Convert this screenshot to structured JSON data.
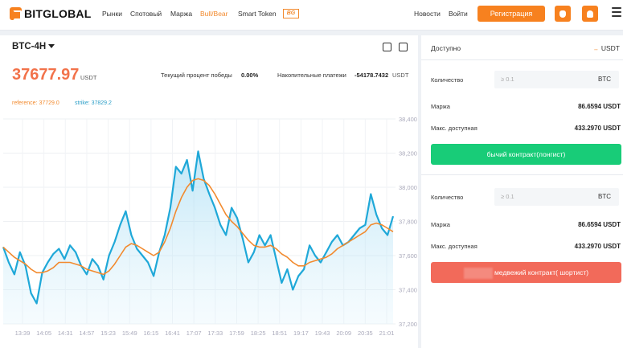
{
  "header": {
    "logo_text": "BITGLOBAL",
    "nav": [
      "Рынки",
      "Спотовый",
      "Маржа",
      "Bull/Bear",
      "Smart Token"
    ],
    "nav_active": "Bull/Bear",
    "badge": "BG",
    "news": "Новости",
    "login": "Войти",
    "register": "Регистрация",
    "apple_icon": "apple-icon",
    "android_icon": "android-icon",
    "menu_icon": "hamburger-menu-icon"
  },
  "chart_panel": {
    "pair": "BTC-4H",
    "price": "37677.97",
    "price_unit": "USDT",
    "win_rate_label": "Текущий процент победы",
    "win_rate_value": "0.00%",
    "payments_label": "Накопительные платежи",
    "payments_value": "-54178.7432",
    "payments_unit": "USDT",
    "reference": "reference: 37729.0",
    "strike": "strike: 37829.2"
  },
  "chart_data": {
    "type": "line",
    "x_ticks": [
      "13:39",
      "14:05",
      "14:31",
      "14:57",
      "15:23",
      "15:49",
      "16:15",
      "16:41",
      "17:07",
      "17:33",
      "17:59",
      "18:25",
      "18:51",
      "19:17",
      "19:43",
      "20:09",
      "20:35",
      "21:01"
    ],
    "y_ticks": [
      "38,400",
      "38,200",
      "38,000",
      "37,800",
      "37,600",
      "37,400",
      "37,200"
    ],
    "ylim": [
      37200,
      38400
    ],
    "grid": true,
    "series": [
      {
        "color": "#1fa8d8",
        "values": [
          37650,
          37560,
          37490,
          37620,
          37540,
          37380,
          37320,
          37500,
          37560,
          37610,
          37640,
          37580,
          37660,
          37620,
          37540,
          37490,
          37580,
          37540,
          37460,
          37600,
          37680,
          37780,
          37860,
          37720,
          37640,
          37600,
          37560,
          37480,
          37620,
          37720,
          37880,
          38120,
          38080,
          38160,
          37980,
          38210,
          38050,
          37960,
          37880,
          37780,
          37720,
          37880,
          37820,
          37700,
          37560,
          37620,
          37720,
          37660,
          37720,
          37580,
          37440,
          37520,
          37400,
          37480,
          37520,
          37660,
          37600,
          37560,
          37620,
          37680,
          37720,
          37660,
          37680,
          37720,
          37760,
          37780,
          37960,
          37840,
          37760,
          37720,
          37830
        ]
      },
      {
        "color": "#f28a2e",
        "values": [
          37650,
          37620,
          37590,
          37570,
          37550,
          37520,
          37500,
          37500,
          37510,
          37530,
          37560,
          37560,
          37560,
          37550,
          37540,
          37520,
          37510,
          37500,
          37490,
          37510,
          37550,
          37600,
          37650,
          37670,
          37660,
          37640,
          37620,
          37600,
          37620,
          37680,
          37760,
          37860,
          37940,
          38000,
          38040,
          38050,
          38040,
          38010,
          37960,
          37900,
          37840,
          37800,
          37770,
          37730,
          37690,
          37660,
          37650,
          37650,
          37660,
          37640,
          37610,
          37590,
          37560,
          37540,
          37540,
          37560,
          37570,
          37580,
          37590,
          37610,
          37640,
          37660,
          37680,
          37700,
          37720,
          37740,
          37780,
          37790,
          37780,
          37760,
          37740
        ]
      }
    ]
  },
  "side_panel": {
    "available_label": "Доступно",
    "available_currency": "USDT",
    "available_arrows": "↔",
    "long": {
      "qty_label": "Количество",
      "qty_placeholder": "≥ 0.1",
      "qty_currency": "BTC",
      "margin_label": "Маржа",
      "margin_value": "86.6594 USDT",
      "max_label": "Макс. доступная",
      "max_value": "433.2970 USDT",
      "button": "бычий контракт(лонгист)"
    },
    "short": {
      "qty_label": "Количество",
      "qty_placeholder": "≥ 0.1",
      "qty_currency": "BTC",
      "margin_label": "Маржа",
      "margin_value": "86.6594 USDT",
      "max_label": "Макс. доступная",
      "max_value": "433.2970 USDT",
      "button": "медвежий контракт( шортист)"
    }
  }
}
